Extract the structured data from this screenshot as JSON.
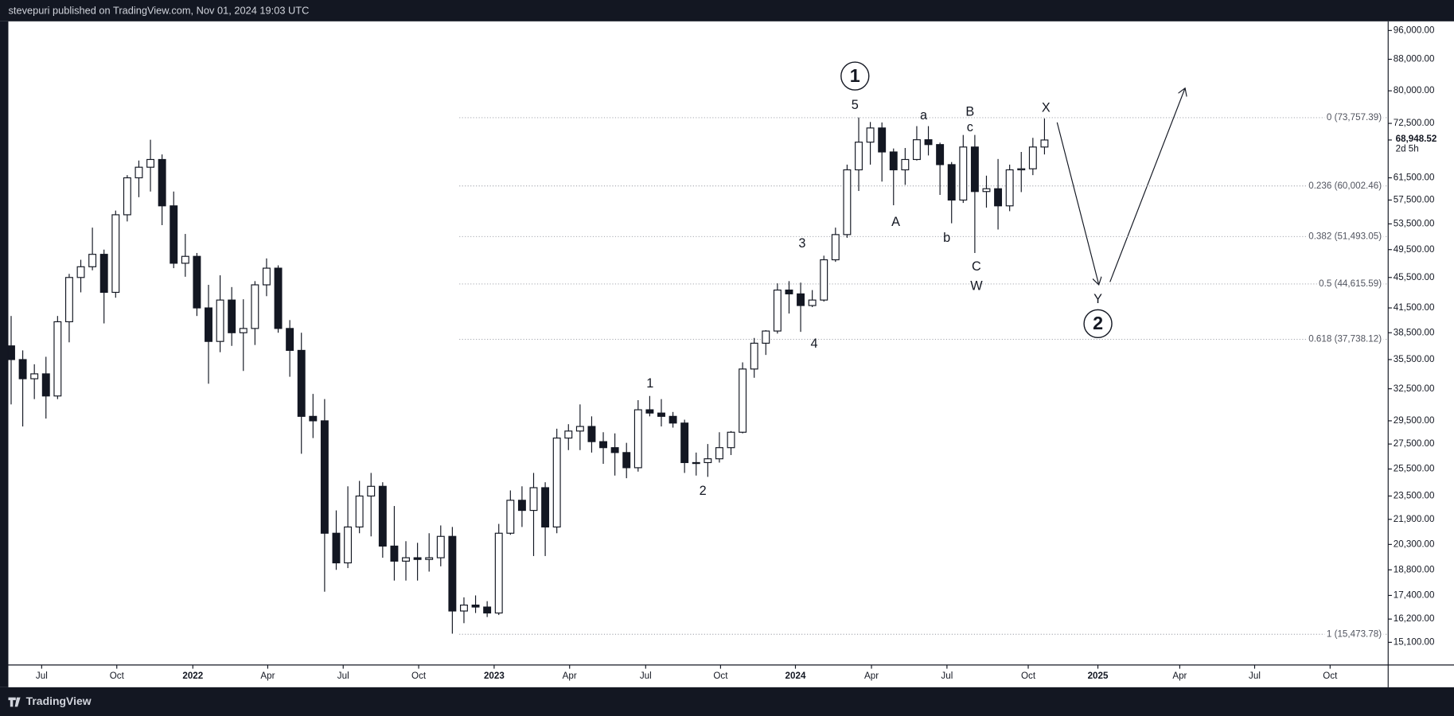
{
  "header": {
    "text": "stevepuri published on TradingView.com, Nov 01, 2024 19:03 UTC"
  },
  "footer": {
    "brand": "TradingView"
  },
  "chart_data": {
    "type": "candlestick",
    "categories": [
      null,
      null,
      null,
      null,
      null,
      null,
      null,
      null,
      null,
      null,
      null,
      null,
      null,
      null,
      null,
      null,
      null,
      null,
      null,
      null,
      null,
      null,
      null,
      null,
      null,
      null,
      null,
      null,
      null,
      null,
      null,
      null,
      null,
      null,
      null,
      null,
      null,
      null,
      null,
      null,
      null,
      null,
      null,
      null,
      null,
      null,
      null,
      null,
      null,
      null,
      null,
      null,
      null,
      null,
      null,
      null,
      null,
      null,
      null,
      null,
      null,
      null,
      null,
      null,
      null,
      null,
      null,
      null,
      null,
      null,
      null,
      null,
      null,
      null,
      null,
      null,
      null,
      null,
      null,
      null,
      null,
      null,
      null,
      null,
      null,
      null,
      null,
      null,
      null,
      null
    ],
    "open": [
      37000,
      35500,
      33500,
      34000,
      31800,
      39800,
      45500,
      47000,
      48800,
      43500,
      55000,
      61500,
      63500,
      65000,
      56500,
      47500,
      48500,
      41500,
      37500,
      42500,
      38500,
      39000,
      44500,
      46800,
      39000,
      36500,
      29900,
      29500,
      21000,
      19200,
      21400,
      23500,
      24200,
      20200,
      19300,
      19500,
      19400,
      19500,
      20800,
      16600,
      16900,
      16800,
      16500,
      21000,
      23200,
      22500,
      24100,
      21400,
      28000,
      28600,
      29000,
      27700,
      27200,
      26800,
      25600,
      30500,
      30200,
      29900,
      29300,
      26000,
      26000,
      26300,
      27200,
      28500,
      34500,
      37300,
      38700,
      43800,
      43300,
      41800,
      42500,
      48000,
      51800,
      63000,
      68500,
      71500,
      66500,
      63000,
      65000,
      69000,
      68000,
      64000,
      57500,
      67500,
      59000,
      59500,
      56500,
      63000,
      63200,
      67500
    ],
    "high": [
      40500,
      36500,
      35000,
      35800,
      40500,
      46000,
      48000,
      52900,
      49500,
      55700,
      62000,
      64800,
      69000,
      66000,
      59000,
      51900,
      49000,
      44500,
      45800,
      44200,
      42600,
      45000,
      48200,
      47200,
      40000,
      38500,
      32000,
      31500,
      22500,
      24200,
      24600,
      25200,
      24500,
      22800,
      20500,
      20400,
      21000,
      21500,
      21400,
      17300,
      17400,
      17100,
      21600,
      23900,
      24200,
      25200,
      24500,
      28800,
      29200,
      31000,
      29900,
      28500,
      28400,
      27600,
      31400,
      31800,
      31500,
      30300,
      29600,
      26800,
      27500,
      28500,
      28600,
      35200,
      37900,
      38800,
      44700,
      45000,
      44800,
      43800,
      48600,
      52900,
      64000,
      73800,
      72800,
      72700,
      67200,
      67300,
      71900,
      71900,
      68400,
      64500,
      70000,
      70000,
      61900,
      65100,
      64000,
      66500,
      69400,
      73600
    ],
    "low": [
      31000,
      29000,
      31500,
      29700,
      31500,
      37400,
      43500,
      46500,
      39600,
      42800,
      53900,
      58000,
      59000,
      53300,
      46800,
      45600,
      40500,
      33000,
      36300,
      37000,
      34300,
      37100,
      43000,
      38500,
      33700,
      26700,
      28000,
      17600,
      18800,
      18900,
      21000,
      20800,
      19500,
      18200,
      18200,
      18200,
      18700,
      19000,
      15500,
      16000,
      16500,
      16300,
      16400,
      20900,
      21400,
      19600,
      19600,
      21000,
      27000,
      27000,
      26800,
      25900,
      25000,
      24800,
      25300,
      29900,
      29000,
      28900,
      25200,
      25000,
      24900,
      26000,
      26600,
      28400,
      33600,
      36000,
      38400,
      40800,
      38600,
      41600,
      42300,
      47700,
      51300,
      59100,
      64000,
      60800,
      56600,
      60200,
      64800,
      65800,
      58400,
      53600,
      57000,
      49000,
      56200,
      52600,
      55600,
      58900,
      62000,
      66000
    ],
    "close": [
      35500,
      33500,
      34000,
      31800,
      39800,
      45500,
      47000,
      48800,
      43500,
      55000,
      61500,
      63500,
      65000,
      56500,
      47500,
      48500,
      41500,
      37500,
      42500,
      38500,
      39000,
      44500,
      46800,
      39000,
      36500,
      29900,
      29500,
      21000,
      19200,
      21400,
      23500,
      24200,
      20200,
      19300,
      19500,
      19400,
      19500,
      20800,
      16600,
      16900,
      16800,
      16500,
      21000,
      23200,
      22500,
      24100,
      21400,
      28000,
      28600,
      29000,
      27700,
      27200,
      26800,
      25600,
      30500,
      30200,
      29900,
      29300,
      26000,
      26000,
      26300,
      27200,
      28500,
      34500,
      37300,
      38700,
      43800,
      43300,
      41800,
      42500,
      48000,
      51800,
      63000,
      68500,
      71500,
      66500,
      63000,
      65000,
      69000,
      68000,
      64000,
      57500,
      67500,
      59000,
      59500,
      56500,
      63000,
      63200,
      67500,
      68948.52
    ],
    "up_color": "#ffffff",
    "down_color": "#131722",
    "outline_color": "#131722",
    "xlim": [
      -0.24,
      118.6
    ],
    "xticks": [
      {
        "value": 2.63,
        "label": "Jul"
      },
      {
        "value": 9.1,
        "label": "Oct"
      },
      {
        "value": 15.65,
        "label": "2022"
      },
      {
        "value": 22.1,
        "label": "Apr"
      },
      {
        "value": 28.6,
        "label": "Jul"
      },
      {
        "value": 35.1,
        "label": "Oct"
      },
      {
        "value": 41.6,
        "label": "2023"
      },
      {
        "value": 48.1,
        "label": "Apr"
      },
      {
        "value": 54.65,
        "label": "Jul"
      },
      {
        "value": 61.1,
        "label": "Oct"
      },
      {
        "value": 67.55,
        "label": "2024"
      },
      {
        "value": 74.1,
        "label": "Apr"
      },
      {
        "value": 80.6,
        "label": "Jul"
      },
      {
        "value": 87.6,
        "label": "Oct"
      },
      {
        "value": 93.6,
        "label": "2025"
      },
      {
        "value": 100.65,
        "label": "Apr"
      },
      {
        "value": 107.1,
        "label": "Jul"
      },
      {
        "value": 113.6,
        "label": "Oct"
      }
    ],
    "ylim": [
      14100,
      98700
    ],
    "log_scale": true,
    "yticks": [
      {
        "value": 96000,
        "label": "96,000.00"
      },
      {
        "value": 88000,
        "label": "88,000.00"
      },
      {
        "value": 80000,
        "label": "80,000.00"
      },
      {
        "value": 72500,
        "label": "72,500.00"
      },
      {
        "value": 61500,
        "label": "61,500.00"
      },
      {
        "value": 57500,
        "label": "57,500.00"
      },
      {
        "value": 53500,
        "label": "53,500.00"
      },
      {
        "value": 49500,
        "label": "49,500.00"
      },
      {
        "value": 45500,
        "label": "45,500.00"
      },
      {
        "value": 41500,
        "label": "41,500.00"
      },
      {
        "value": 38500,
        "label": "38,500.00"
      },
      {
        "value": 35500,
        "label": "35,500.00"
      },
      {
        "value": 32500,
        "label": "32,500.00"
      },
      {
        "value": 29500,
        "label": "29,500.00"
      },
      {
        "value": 27500,
        "label": "27,500.00"
      },
      {
        "value": 25500,
        "label": "25,500.00"
      },
      {
        "value": 23500,
        "label": "23,500.00"
      },
      {
        "value": 21900,
        "label": "21,900.00"
      },
      {
        "value": 20300,
        "label": "20,300.00"
      },
      {
        "value": 18800,
        "label": "18,800.00"
      },
      {
        "value": 17400,
        "label": "17,400.00"
      },
      {
        "value": 16200,
        "label": "16,200.00"
      },
      {
        "value": 15100,
        "label": "15,100.00"
      }
    ],
    "last_price": {
      "value": 68948.52,
      "label": "68,948.52"
    },
    "countdown": "2d 5h",
    "fib_levels": [
      {
        "value": 73757.39,
        "label": "0 (73,757.39)"
      },
      {
        "value": 60002.46,
        "label": "0.236 (60,002.46)"
      },
      {
        "value": 51493.05,
        "label": "0.382 (51,493.05)"
      },
      {
        "value": 44615.59,
        "label": "0.5 (44,615.59)"
      },
      {
        "value": 37738.12,
        "label": "0.618 (37,738.12)"
      },
      {
        "value": 15473.78,
        "label": "1 (15,473.78)"
      }
    ],
    "annotations": [
      {
        "text": "1",
        "circled": true
      },
      {
        "text": "5"
      },
      {
        "text": "a"
      },
      {
        "text": "B"
      },
      {
        "text": "c"
      },
      {
        "text": "X"
      },
      {
        "text": "3"
      },
      {
        "text": "A"
      },
      {
        "text": "b"
      },
      {
        "text": "C"
      },
      {
        "text": "W"
      },
      {
        "text": "4"
      },
      {
        "text": "1"
      },
      {
        "text": "2"
      },
      {
        "text": "Y"
      },
      {
        "text": "2",
        "circled": true
      }
    ]
  }
}
